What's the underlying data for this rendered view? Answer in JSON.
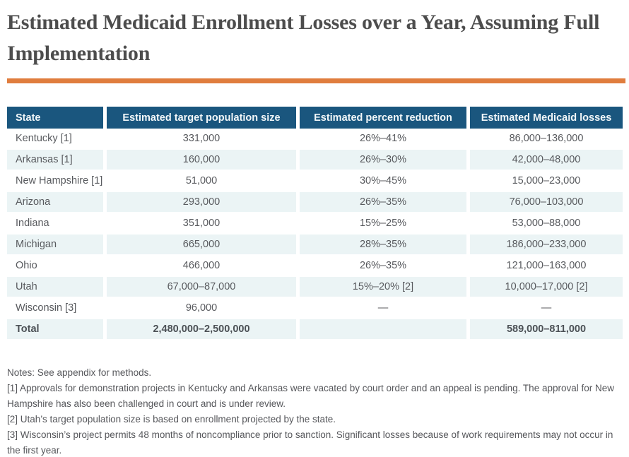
{
  "title": "Estimated Medicaid Enrollment Losses over a Year, Assuming Full Implementation",
  "colors": {
    "accent_rule": "#e07d3e",
    "table_header_bg": "#1a567e",
    "table_header_text": "#f2f7f9",
    "row_stripe_bg": "#ebf4f5",
    "title_text": "#4d4d4d",
    "body_text": "#585a5e"
  },
  "table": {
    "columns": [
      "State",
      "Estimated target population size",
      "Estimated percent reduction",
      "Estimated Medicaid losses"
    ],
    "rows": [
      {
        "state": "Kentucky [1]",
        "population": "331,000",
        "reduction": "26%–41%",
        "losses": "86,000–136,000"
      },
      {
        "state": "Arkansas [1]",
        "population": "160,000",
        "reduction": "26%–30%",
        "losses": "42,000–48,000"
      },
      {
        "state": "New Hampshire [1]",
        "population": "51,000",
        "reduction": "30%–45%",
        "losses": "15,000–23,000"
      },
      {
        "state": "Arizona",
        "population": "293,000",
        "reduction": "26%–35%",
        "losses": "76,000–103,000"
      },
      {
        "state": "Indiana",
        "population": "351,000",
        "reduction": "15%–25%",
        "losses": "53,000–88,000"
      },
      {
        "state": "Michigan",
        "population": "665,000",
        "reduction": "28%–35%",
        "losses": "186,000–233,000"
      },
      {
        "state": "Ohio",
        "population": "466,000",
        "reduction": "26%–35%",
        "losses": "121,000–163,000"
      },
      {
        "state": "Utah",
        "population": "67,000–87,000",
        "reduction": "15%–20% [2]",
        "losses": "10,000–17,000 [2]"
      },
      {
        "state": "Wisconsin [3]",
        "population": "96,000",
        "reduction": "—",
        "losses": "—"
      }
    ],
    "total": {
      "state": "Total",
      "population": "2,480,000–2,500,000",
      "reduction": "",
      "losses": "589,000–811,000"
    }
  },
  "notes": {
    "lines": [
      "Notes: See appendix for methods.",
      "[1] Approvals for demonstration projects in Kentucky and Arkansas were vacated by court order and an appeal is pending. The approval for New Hampshire has also been challenged in court and is under review.",
      "[2] Utah’s target population size is based on enrollment projected by the state.",
      "[3] Wisconsin’s project permits 48 months of noncompliance prior to sanction. Significant losses because of work requirements may not occur in the first year."
    ]
  },
  "chart_data": {
    "type": "table",
    "title": "Estimated Medicaid Enrollment Losses over a Year, Assuming Full Implementation",
    "columns": [
      "State",
      "Estimated target population size",
      "Estimated percent reduction",
      "Estimated Medicaid losses"
    ],
    "rows": [
      [
        "Kentucky [1]",
        "331,000",
        "26%–41%",
        "86,000–136,000"
      ],
      [
        "Arkansas [1]",
        "160,000",
        "26%–30%",
        "42,000–48,000"
      ],
      [
        "New Hampshire [1]",
        "51,000",
        "30%–45%",
        "15,000–23,000"
      ],
      [
        "Arizona",
        "293,000",
        "26%–35%",
        "76,000–103,000"
      ],
      [
        "Indiana",
        "351,000",
        "15%–25%",
        "53,000–88,000"
      ],
      [
        "Michigan",
        "665,000",
        "28%–35%",
        "186,000–233,000"
      ],
      [
        "Ohio",
        "466,000",
        "26%–35%",
        "121,000–163,000"
      ],
      [
        "Utah",
        "67,000–87,000",
        "15%–20% [2]",
        "10,000–17,000 [2]"
      ],
      [
        "Wisconsin [3]",
        "96,000",
        "—",
        "—"
      ],
      [
        "Total",
        "2,480,000–2,500,000",
        "",
        "589,000–811,000"
      ]
    ],
    "footnotes": [
      "Notes: See appendix for methods.",
      "[1] Approvals for demonstration projects in Kentucky and Arkansas were vacated by court order and an appeal is pending. The approval for New Hampshire has also been challenged in court and is under review.",
      "[2] Utah’s target population size is based on enrollment projected by the state.",
      "[3] Wisconsin’s project permits 48 months of noncompliance prior to sanction. Significant losses because of work requirements may not occur in the first year."
    ]
  }
}
